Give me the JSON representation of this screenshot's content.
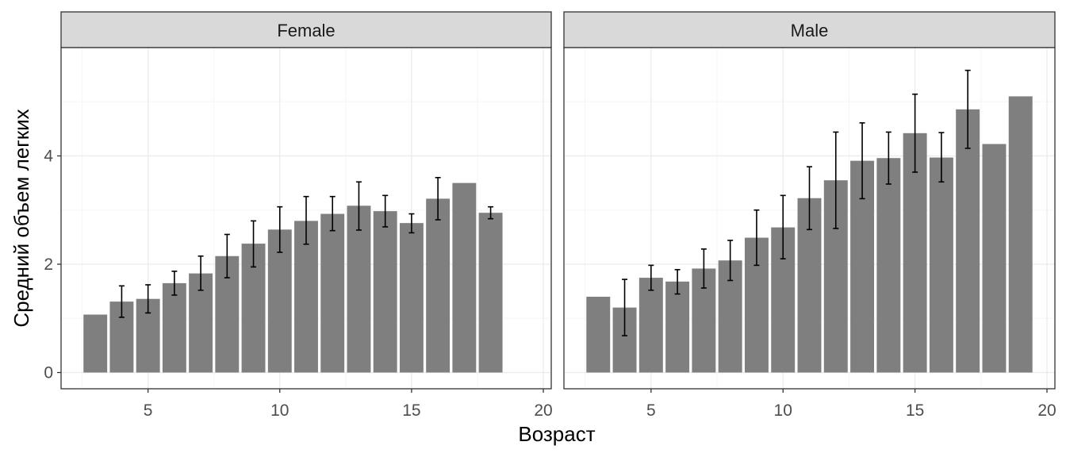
{
  "chart_data": {
    "type": "bar",
    "xlabel": "Возраст",
    "ylabel": "Средний объем легких",
    "ylim": [
      -0.3,
      6.0
    ],
    "xlim": [
      1.7,
      20.3
    ],
    "x_ticks": [
      5,
      10,
      15,
      20
    ],
    "y_ticks": [
      0,
      2,
      4
    ],
    "grid": true,
    "colors": {
      "bar": "#7f7f7f",
      "error_bar": "#000000",
      "strip_fill": "#d9d9d9",
      "grid_major": "#ebebeb",
      "grid_minor": "#f5f5f5",
      "panel_border": "#333333"
    },
    "panels": [
      {
        "label": "Female",
        "bars": [
          {
            "x": 3,
            "y": 1.07,
            "lo": null,
            "hi": null
          },
          {
            "x": 4,
            "y": 1.31,
            "lo": 1.02,
            "hi": 1.6
          },
          {
            "x": 5,
            "y": 1.36,
            "lo": 1.1,
            "hi": 1.62
          },
          {
            "x": 6,
            "y": 1.65,
            "lo": 1.43,
            "hi": 1.87
          },
          {
            "x": 7,
            "y": 1.83,
            "lo": 1.52,
            "hi": 2.15
          },
          {
            "x": 8,
            "y": 2.15,
            "lo": 1.75,
            "hi": 2.55
          },
          {
            "x": 9,
            "y": 2.38,
            "lo": 1.95,
            "hi": 2.8
          },
          {
            "x": 10,
            "y": 2.64,
            "lo": 2.22,
            "hi": 3.06
          },
          {
            "x": 11,
            "y": 2.8,
            "lo": 2.37,
            "hi": 3.25
          },
          {
            "x": 12,
            "y": 2.93,
            "lo": 2.62,
            "hi": 3.25
          },
          {
            "x": 13,
            "y": 3.08,
            "lo": 2.63,
            "hi": 3.52
          },
          {
            "x": 14,
            "y": 2.98,
            "lo": 2.69,
            "hi": 3.27
          },
          {
            "x": 15,
            "y": 2.76,
            "lo": 2.58,
            "hi": 2.93
          },
          {
            "x": 16,
            "y": 3.21,
            "lo": 2.82,
            "hi": 3.6
          },
          {
            "x": 17,
            "y": 3.5,
            "lo": null,
            "hi": null
          },
          {
            "x": 18,
            "y": 2.95,
            "lo": 2.84,
            "hi": 3.06
          }
        ]
      },
      {
        "label": "Male",
        "bars": [
          {
            "x": 3,
            "y": 1.4,
            "lo": null,
            "hi": null
          },
          {
            "x": 4,
            "y": 1.2,
            "lo": 0.68,
            "hi": 1.72
          },
          {
            "x": 5,
            "y": 1.75,
            "lo": 1.52,
            "hi": 1.98
          },
          {
            "x": 6,
            "y": 1.68,
            "lo": 1.45,
            "hi": 1.9
          },
          {
            "x": 7,
            "y": 1.92,
            "lo": 1.56,
            "hi": 2.28
          },
          {
            "x": 8,
            "y": 2.07,
            "lo": 1.7,
            "hi": 2.44
          },
          {
            "x": 9,
            "y": 2.49,
            "lo": 1.98,
            "hi": 3.0
          },
          {
            "x": 10,
            "y": 2.68,
            "lo": 2.1,
            "hi": 3.27
          },
          {
            "x": 11,
            "y": 3.22,
            "lo": 2.64,
            "hi": 3.8
          },
          {
            "x": 12,
            "y": 3.55,
            "lo": 2.66,
            "hi": 4.44
          },
          {
            "x": 13,
            "y": 3.91,
            "lo": 3.21,
            "hi": 4.61
          },
          {
            "x": 14,
            "y": 3.96,
            "lo": 3.48,
            "hi": 4.44
          },
          {
            "x": 15,
            "y": 4.42,
            "lo": 3.7,
            "hi": 5.14
          },
          {
            "x": 16,
            "y": 3.97,
            "lo": 3.52,
            "hi": 4.43
          },
          {
            "x": 17,
            "y": 4.86,
            "lo": 4.14,
            "hi": 5.58
          },
          {
            "x": 18,
            "y": 4.22,
            "lo": null,
            "hi": null
          },
          {
            "x": 19,
            "y": 5.1,
            "lo": null,
            "hi": null
          }
        ]
      }
    ]
  }
}
